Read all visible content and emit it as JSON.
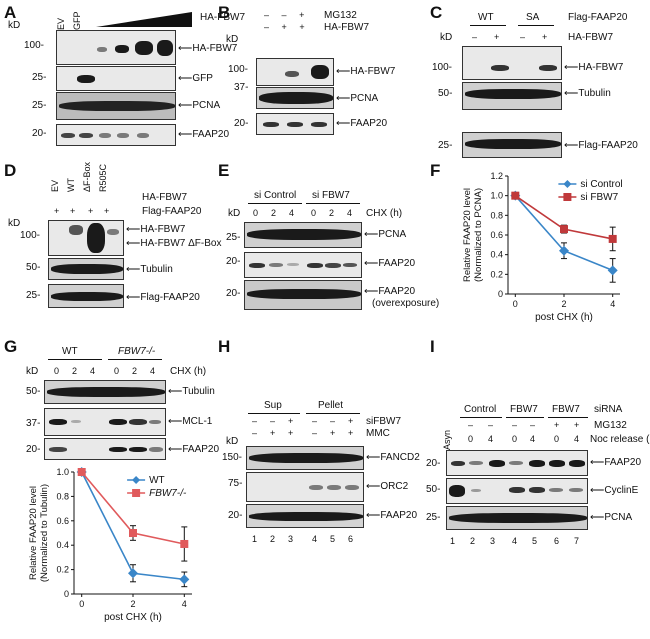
{
  "panels": {
    "A": {
      "label": "A",
      "kd": "kD",
      "cols": [
        "EV",
        "GFP"
      ],
      "wedge_label": "HA-FBW7",
      "markers": [
        "100-",
        "25-",
        "25-",
        "20-"
      ],
      "bands": [
        "HA-FBW7",
        "GFP",
        "PCNA",
        "FAAP20"
      ]
    },
    "B": {
      "label": "B",
      "rows": [
        [
          "–",
          "–",
          "+"
        ],
        [
          "–",
          "+",
          "+"
        ]
      ],
      "row_labels": [
        "MG132",
        "HA-FBW7"
      ],
      "kd": "kD",
      "markers": [
        "100-",
        "37-",
        "20-"
      ],
      "bands": [
        "HA-FBW7",
        "PCNA",
        "FAAP20"
      ]
    },
    "C": {
      "label": "C",
      "groups": [
        "WT",
        "SA"
      ],
      "group_label": "Flag-FAAP20",
      "kd": "kD",
      "signs": [
        "–",
        "+",
        "–",
        "+"
      ],
      "row_label": "HA-FBW7",
      "markers": [
        "100-",
        "50-",
        "25-"
      ],
      "bands": [
        "HA-FBW7",
        "Tubulin",
        "Flag-FAAP20"
      ]
    },
    "D": {
      "label": "D",
      "cols": [
        "EV",
        "WT",
        "ΔF-Box",
        "R505C"
      ],
      "col_label": "HA-FBW7",
      "signs": [
        "+",
        "+",
        "+",
        "+"
      ],
      "row_label": "Flag-FAAP20",
      "kd": "kD",
      "markers": [
        "100-",
        "50-",
        "25-"
      ],
      "bands": [
        "HA-FBW7",
        "HA-FBW7 ΔF-Box",
        "Tubulin",
        "Flag-FAAP20"
      ]
    },
    "E": {
      "label": "E",
      "groups": [
        "si Control",
        "si FBW7"
      ],
      "times": [
        "0",
        "2",
        "4",
        "0",
        "2",
        "4"
      ],
      "time_label": "CHX (h)",
      "kd": "kD",
      "markers": [
        "25-",
        "20-",
        "20-"
      ],
      "bands": [
        "PCNA",
        "FAAP20",
        "FAAP20",
        "(overexposure)"
      ]
    },
    "F": {
      "label": "F",
      "ylabel": "Relative FAAP20 level (Normalized to PCNA)",
      "xlabel": "post CHX (h)"
    },
    "G": {
      "label": "G",
      "groups": [
        "WT",
        "FBW7-/-"
      ],
      "times": [
        "0",
        "2",
        "4",
        "0",
        "2",
        "4"
      ],
      "time_label": "CHX (h)",
      "kd": "kD",
      "markers": [
        "50-",
        "37-",
        "20-"
      ],
      "bands": [
        "Tubulin",
        "MCL-1",
        "FAAP20"
      ],
      "ylabel": "Relative FAAP20 level (Normalized to Tubulin)",
      "xlabel": "post CHX (h)"
    },
    "H": {
      "label": "H",
      "groups": [
        "Sup",
        "Pellet"
      ],
      "rows": [
        [
          "–",
          "–",
          "+",
          "–",
          "–",
          "+"
        ],
        [
          "–",
          "+",
          "+",
          "–",
          "+",
          "+"
        ]
      ],
      "row_labels": [
        "siFBW7",
        "MMC"
      ],
      "kd": "kD",
      "markers": [
        "150-",
        "75-",
        "20-"
      ],
      "bands": [
        "FANCD2",
        "ORC2",
        "FAAP20"
      ],
      "lanes": [
        "1",
        "2",
        "3",
        "4",
        "5",
        "6"
      ]
    },
    "I": {
      "label": "I",
      "groups": [
        "Control",
        "FBW7",
        "FBW7"
      ],
      "group_label": "siRNA",
      "asyn": "Asyn",
      "mg_signs": [
        "–",
        "–",
        "–",
        "–",
        "+",
        "+"
      ],
      "mg_label": "MG132",
      "times": [
        "0",
        "4",
        "0",
        "4",
        "0",
        "4"
      ],
      "time_label": "Noc release (h)",
      "markers": [
        "20-",
        "50-",
        "25-"
      ],
      "bands": [
        "FAAP20",
        "CyclinE",
        "PCNA"
      ],
      "lanes": [
        "1",
        "2",
        "3",
        "4",
        "5",
        "6",
        "7"
      ]
    }
  },
  "chart_data": [
    {
      "type": "line",
      "panel": "F",
      "x": [
        0,
        2,
        4
      ],
      "xlim": [
        0,
        4
      ],
      "ylim": [
        0,
        1.2
      ],
      "yticks": [
        "0",
        "0.2",
        "0.4",
        "0.6",
        "0.8",
        "1.0",
        "1.2"
      ],
      "xticks": [
        "0",
        "2",
        "4"
      ],
      "xlabel": "post CHX (h)",
      "ylabel": "Relative FAAP20 level (Normalized to PCNA)",
      "legend": "top-right",
      "series": [
        {
          "name": "si Control",
          "values": [
            1.0,
            0.44,
            0.24
          ],
          "errors": [
            0,
            0.08,
            0.12
          ],
          "color": "#3a86c8",
          "marker": "diamond"
        },
        {
          "name": "si FBW7",
          "values": [
            1.0,
            0.66,
            0.56
          ],
          "errors": [
            0,
            0.04,
            0.12
          ],
          "color": "#c0393b",
          "marker": "square"
        }
      ]
    },
    {
      "type": "line",
      "panel": "G",
      "x": [
        0,
        2,
        4
      ],
      "xlim": [
        0,
        4
      ],
      "ylim": [
        0,
        1.0
      ],
      "yticks": [
        "0",
        "0.2",
        "0.4",
        "0.6",
        "0.8",
        "1.0"
      ],
      "xticks": [
        "0",
        "2",
        "4"
      ],
      "xlabel": "post CHX (h)",
      "ylabel": "Relative FAAP20 level (Normalized to Tubulin)",
      "legend": "top-right",
      "series": [
        {
          "name": "WT",
          "values": [
            1.0,
            0.17,
            0.12
          ],
          "errors": [
            0,
            0.07,
            0.06
          ],
          "color": "#3a86c8",
          "marker": "diamond"
        },
        {
          "name": "FBW7-/-",
          "values": [
            1.0,
            0.5,
            0.41
          ],
          "errors": [
            0,
            0.06,
            0.14
          ],
          "color": "#e05a5c",
          "marker": "square"
        }
      ]
    }
  ]
}
